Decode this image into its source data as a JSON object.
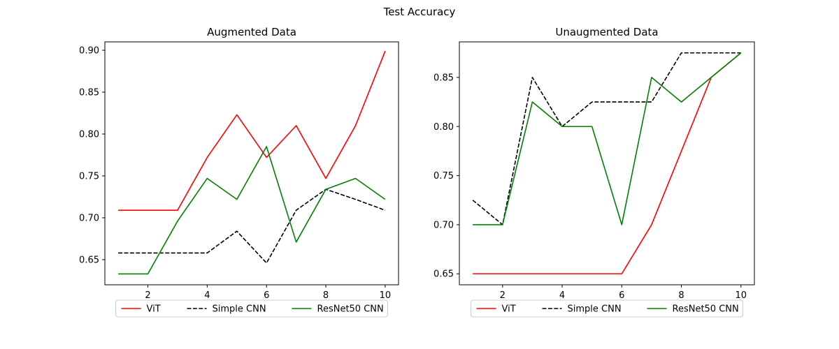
{
  "figure": {
    "title": "Test Accuracy"
  },
  "chart_data": [
    {
      "type": "line",
      "title": "Augmented Data",
      "xlabel": "",
      "ylabel": "",
      "x": [
        1,
        2,
        3,
        4,
        5,
        6,
        7,
        8,
        9,
        10
      ],
      "xlim": [
        0.55,
        10.45
      ],
      "ylim": [
        0.62,
        0.91
      ],
      "xticks": [
        2,
        4,
        6,
        8,
        10
      ],
      "xtick_labels": [
        "2",
        "4",
        "6",
        "8",
        "10"
      ],
      "yticks": [
        0.65,
        0.7,
        0.75,
        0.8,
        0.85,
        0.9
      ],
      "ytick_labels": [
        "0.65",
        "0.70",
        "0.75",
        "0.80",
        "0.85",
        "0.90"
      ],
      "grid": false,
      "legend": "bottom-center-outside",
      "series": [
        {
          "name": "ViT",
          "color": "#ff0000",
          "dash": "solid",
          "values": [
            0.709,
            0.709,
            0.709,
            0.772,
            0.823,
            0.772,
            0.81,
            0.747,
            0.81,
            0.899
          ]
        },
        {
          "name": "Simple CNN",
          "color": "#000000",
          "dash": "dashed",
          "values": [
            0.658,
            0.658,
            0.658,
            0.658,
            0.684,
            0.646,
            0.709,
            0.734,
            0.722,
            0.709
          ]
        },
        {
          "name": "ResNet50 CNN",
          "color": "#008000",
          "dash": "solid",
          "values": [
            0.633,
            0.633,
            0.696,
            0.747,
            0.722,
            0.785,
            0.671,
            0.734,
            0.747,
            0.722
          ]
        }
      ]
    },
    {
      "type": "line",
      "title": "Unaugmented Data",
      "xlabel": "",
      "ylabel": "",
      "x": [
        1,
        2,
        3,
        4,
        5,
        6,
        7,
        8,
        9,
        10
      ],
      "xlim": [
        0.55,
        10.45
      ],
      "ylim": [
        0.6388,
        0.8862
      ],
      "xticks": [
        2,
        4,
        6,
        8,
        10
      ],
      "xtick_labels": [
        "2",
        "4",
        "6",
        "8",
        "10"
      ],
      "yticks": [
        0.65,
        0.7,
        0.75,
        0.8,
        0.85
      ],
      "ytick_labels": [
        "0.65",
        "0.70",
        "0.75",
        "0.80",
        "0.85"
      ],
      "grid": false,
      "legend": "bottom-center-outside",
      "series": [
        {
          "name": "ViT",
          "color": "#ff0000",
          "dash": "solid",
          "values": [
            0.65,
            0.65,
            0.65,
            0.65,
            0.65,
            0.65,
            0.7,
            0.775,
            0.85,
            0.875
          ]
        },
        {
          "name": "Simple CNN",
          "color": "#000000",
          "dash": "dashed",
          "values": [
            0.725,
            0.7,
            0.85,
            0.8,
            0.825,
            0.825,
            0.825,
            0.875,
            0.875,
            0.875
          ]
        },
        {
          "name": "ResNet50 CNN",
          "color": "#008000",
          "dash": "solid",
          "values": [
            0.7,
            0.7,
            0.825,
            0.8,
            0.8,
            0.7,
            0.85,
            0.825,
            0.85,
            0.875
          ]
        }
      ]
    }
  ]
}
